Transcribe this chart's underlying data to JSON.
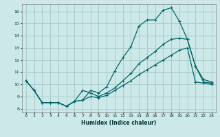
{
  "xlabel": "Humidex (Indice chaleur)",
  "bg_color": "#cce8e8",
  "grid_color": "#aacccc",
  "line_color": "#006666",
  "xlim": [
    -0.5,
    23.5
  ],
  "ylim": [
    7.7,
    16.6
  ],
  "xticks": [
    0,
    1,
    2,
    3,
    4,
    5,
    6,
    7,
    8,
    9,
    10,
    11,
    12,
    13,
    14,
    15,
    16,
    17,
    18,
    19,
    20,
    21,
    22,
    23
  ],
  "yticks": [
    8,
    9,
    10,
    11,
    12,
    13,
    14,
    15,
    16
  ],
  "line1_x": [
    0,
    1,
    2,
    3,
    4,
    5,
    6,
    7,
    8,
    9,
    10,
    11,
    12,
    13,
    14,
    15,
    16,
    17,
    18,
    19,
    20,
    21,
    22,
    23
  ],
  "line1_y": [
    10.3,
    9.5,
    8.5,
    8.5,
    8.5,
    8.2,
    8.6,
    8.7,
    9.5,
    9.3,
    9.8,
    11.1,
    12.2,
    13.1,
    14.8,
    15.3,
    15.3,
    16.1,
    16.3,
    15.2,
    13.7,
    11.5,
    10.4,
    10.2
  ],
  "line2_x": [
    0,
    1,
    2,
    3,
    4,
    5,
    6,
    7,
    8,
    9,
    10,
    11,
    12,
    13,
    14,
    15,
    16,
    17,
    18,
    19,
    20,
    21,
    22,
    23
  ],
  "line2_y": [
    10.3,
    9.5,
    8.5,
    8.5,
    8.5,
    8.2,
    8.6,
    9.5,
    9.3,
    9.0,
    9.3,
    9.7,
    10.3,
    10.9,
    11.7,
    12.2,
    12.7,
    13.3,
    13.7,
    13.8,
    13.7,
    11.5,
    10.2,
    10.1
  ],
  "line3_x": [
    0,
    1,
    2,
    3,
    4,
    5,
    6,
    7,
    8,
    9,
    10,
    11,
    12,
    13,
    14,
    15,
    16,
    17,
    18,
    19,
    20,
    21,
    22,
    23
  ],
  "line3_y": [
    10.3,
    9.5,
    8.5,
    8.5,
    8.5,
    8.2,
    8.6,
    8.7,
    9.0,
    8.9,
    9.1,
    9.5,
    9.9,
    10.3,
    10.8,
    11.2,
    11.6,
    12.0,
    12.4,
    12.8,
    13.0,
    10.2,
    10.1,
    10.0
  ]
}
